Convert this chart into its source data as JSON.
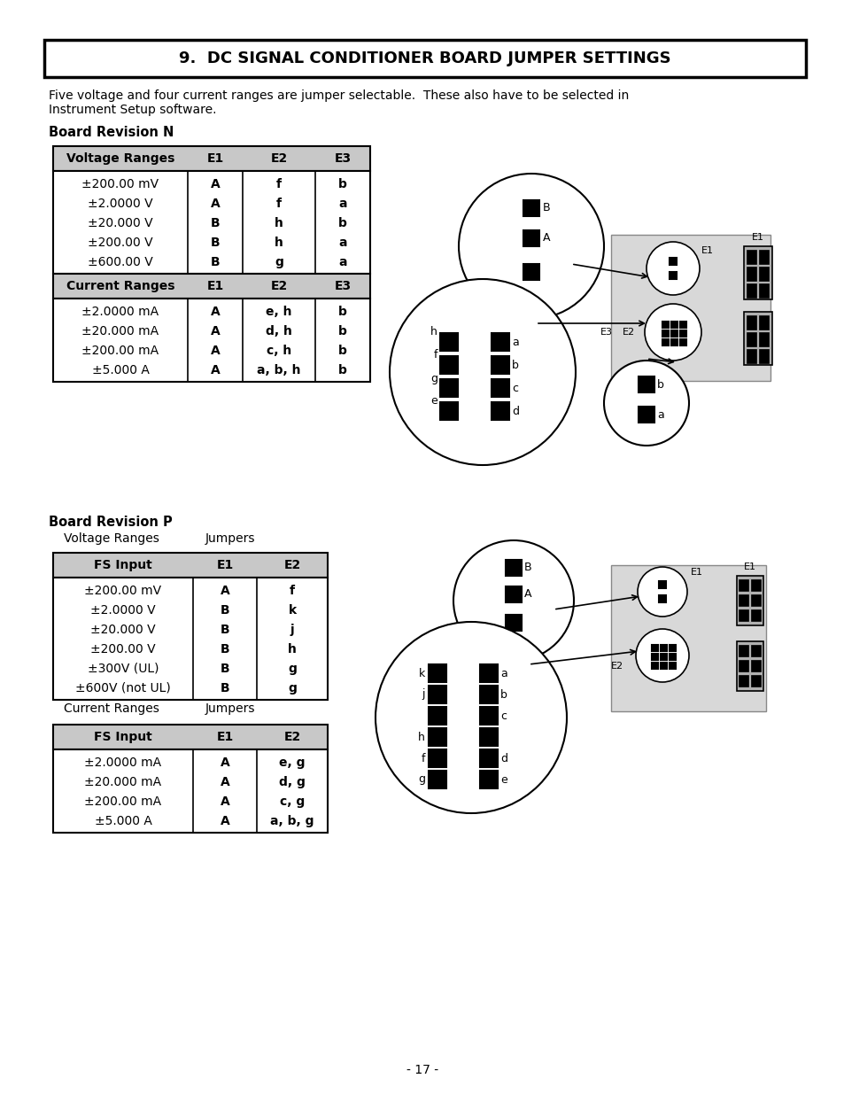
{
  "title": "9.  DC SIGNAL CONDITIONER BOARD JUMPER SETTINGS",
  "body_text_line1": "Five voltage and four current ranges are jumper selectable.  These also have to be selected in",
  "body_text_line2": "Instrument Setup software.",
  "section1_label": "Board Revision N",
  "section2_label": "Board Revision P",
  "table1_headers": [
    "Voltage Ranges",
    "E1",
    "E2",
    "E3"
  ],
  "table1_voltage_rows": [
    [
      "±200.00 mV",
      "A",
      "f",
      "b"
    ],
    [
      "±2.0000 V",
      "A",
      "f",
      "a"
    ],
    [
      "±20.000 V",
      "B",
      "h",
      "b"
    ],
    [
      "±200.00 V",
      "B",
      "h",
      "a"
    ],
    [
      "±600.00 V",
      "B",
      "g",
      "a"
    ]
  ],
  "table1_current_header": [
    "Current Ranges",
    "E1",
    "E2",
    "E3"
  ],
  "table1_current_rows": [
    [
      "±2.0000 mA",
      "A",
      "e, h",
      "b"
    ],
    [
      "±20.000 mA",
      "A",
      "d, h",
      "b"
    ],
    [
      "±200.00 mA",
      "A",
      "c, h",
      "b"
    ],
    [
      "±5.000 A",
      "A",
      "a, b, h",
      "b"
    ]
  ],
  "vol_ranges_label": "Voltage Ranges",
  "jumpers_label": "Jumpers",
  "cur_ranges_label": "Current Ranges",
  "table2_voltage_header": [
    "FS Input",
    "E1",
    "E2"
  ],
  "table2_voltage_rows": [
    [
      "±200.00 mV",
      "A",
      "f"
    ],
    [
      "±2.0000 V",
      "B",
      "k"
    ],
    [
      "±20.000 V",
      "B",
      "j"
    ],
    [
      "±200.00 V",
      "B",
      "h"
    ],
    [
      "±300V (UL)",
      "B",
      "g"
    ],
    [
      "±600V (not UL)",
      "B",
      "g"
    ]
  ],
  "table2_current_header": [
    "FS Input",
    "E1",
    "E2"
  ],
  "table2_current_rows": [
    [
      "±2.0000 mA",
      "A",
      "e, g"
    ],
    [
      "±20.000 mA",
      "A",
      "d, g"
    ],
    [
      "±200.00 mA",
      "A",
      "c, g"
    ],
    [
      "±5.000 A",
      "A",
      "a, b, g"
    ]
  ],
  "page_number": "- 17 -",
  "bg_color": "#ffffff",
  "hdr_bg": "#c8c8c8",
  "black": "#000000"
}
